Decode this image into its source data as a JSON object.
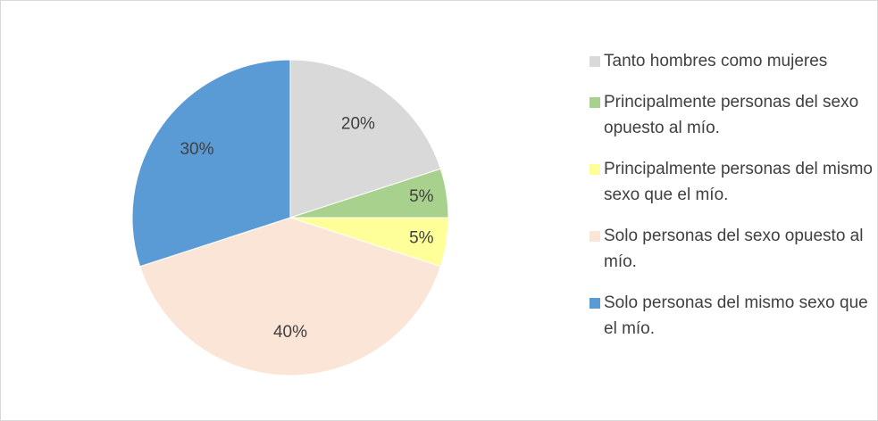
{
  "chart_data": {
    "type": "pie",
    "categories": [
      "Tanto hombres como mujeres",
      "Principalmente personas del sexo opuesto al mío.",
      "Principalmente personas del mismo sexo que el mío.",
      "Solo personas del sexo opuesto al mío.",
      "Solo personas del mismo sexo que el mío."
    ],
    "values": [
      20,
      5,
      5,
      40,
      30
    ],
    "value_labels": [
      "20%",
      "5%",
      "5%",
      "40%",
      "30%"
    ],
    "colors": [
      "#d9d9d9",
      "#a9d18e",
      "#ffff99",
      "#fbe5d6",
      "#5b9bd5"
    ],
    "legend": "right"
  }
}
